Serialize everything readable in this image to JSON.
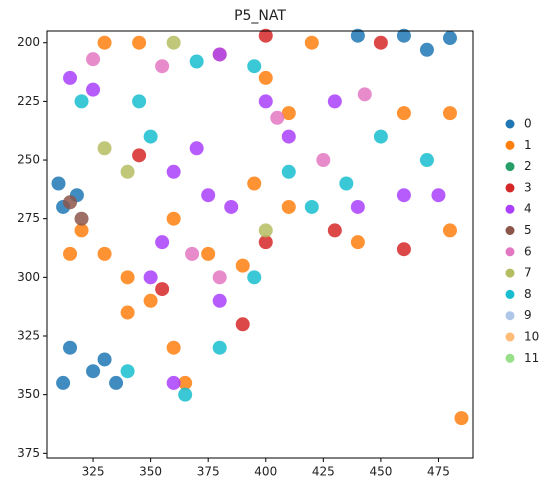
{
  "chart_data": {
    "type": "scatter",
    "title": "P5_NAT",
    "xlim": [
      305,
      490
    ],
    "ylim": [
      377,
      195
    ],
    "xticks": [
      325,
      350,
      375,
      400,
      425,
      450,
      475
    ],
    "yticks": [
      200,
      225,
      250,
      275,
      300,
      325,
      350,
      375
    ],
    "legend": "right",
    "series": [
      {
        "name": "0",
        "color": "#1f77b4",
        "x": [
          440,
          460,
          480,
          470,
          315,
          325,
          312,
          330,
          335,
          310,
          312,
          318
        ],
        "y": [
          197,
          197,
          198,
          203,
          330,
          340,
          345,
          335,
          345,
          260,
          270,
          265
        ]
      },
      {
        "name": "1",
        "color": "#ff7f0e",
        "x": [
          320,
          330,
          340,
          350,
          360,
          365,
          340,
          375,
          390,
          345,
          380,
          420,
          400,
          410,
          460,
          480,
          410,
          440,
          480,
          360,
          395,
          485,
          330,
          315
        ],
        "y": [
          280,
          290,
          300,
          310,
          330,
          345,
          315,
          290,
          295,
          200,
          205,
          200,
          215,
          230,
          230,
          230,
          270,
          285,
          280,
          275,
          260,
          360,
          200,
          290
        ]
      },
      {
        "name": "2",
        "color": "#279e68",
        "x": [],
        "y": []
      },
      {
        "name": "3",
        "color": "#d62728",
        "x": [
          345,
          400,
          430,
          460,
          390,
          355,
          400,
          450
        ],
        "y": [
          248,
          285,
          280,
          288,
          320,
          305,
          197,
          200
        ]
      },
      {
        "name": "4",
        "color": "#aa40fc",
        "x": [
          360,
          375,
          385,
          370,
          355,
          380,
          360,
          440,
          475,
          460,
          410,
          380,
          430,
          350,
          400,
          315,
          325
        ],
        "y": [
          255,
          265,
          270,
          245,
          285,
          310,
          345,
          270,
          265,
          265,
          240,
          205,
          225,
          300,
          225,
          215,
          220
        ]
      },
      {
        "name": "5",
        "color": "#8c564b",
        "x": [
          315,
          320
        ],
        "y": [
          268,
          275
        ]
      },
      {
        "name": "6",
        "color": "#e377c2",
        "x": [
          368,
          380,
          425,
          443,
          355,
          405,
          325
        ],
        "y": [
          290,
          300,
          250,
          222,
          210,
          232,
          207
        ]
      },
      {
        "name": "7",
        "color": "#b5bd61",
        "x": [
          330,
          340,
          400,
          360
        ],
        "y": [
          245,
          255,
          280,
          200
        ]
      },
      {
        "name": "8",
        "color": "#17becf",
        "x": [
          320,
          345,
          370,
          395,
          420,
          435,
          380,
          365,
          470,
          410,
          395,
          350,
          450,
          340
        ],
        "y": [
          225,
          225,
          208,
          210,
          270,
          260,
          330,
          350,
          250,
          255,
          300,
          240,
          240,
          340
        ]
      },
      {
        "name": "9",
        "color": "#aec7e8",
        "x": [],
        "y": []
      },
      {
        "name": "10",
        "color": "#ffbb78",
        "x": [],
        "y": []
      },
      {
        "name": "11",
        "color": "#98df8a",
        "x": [],
        "y": []
      }
    ]
  }
}
